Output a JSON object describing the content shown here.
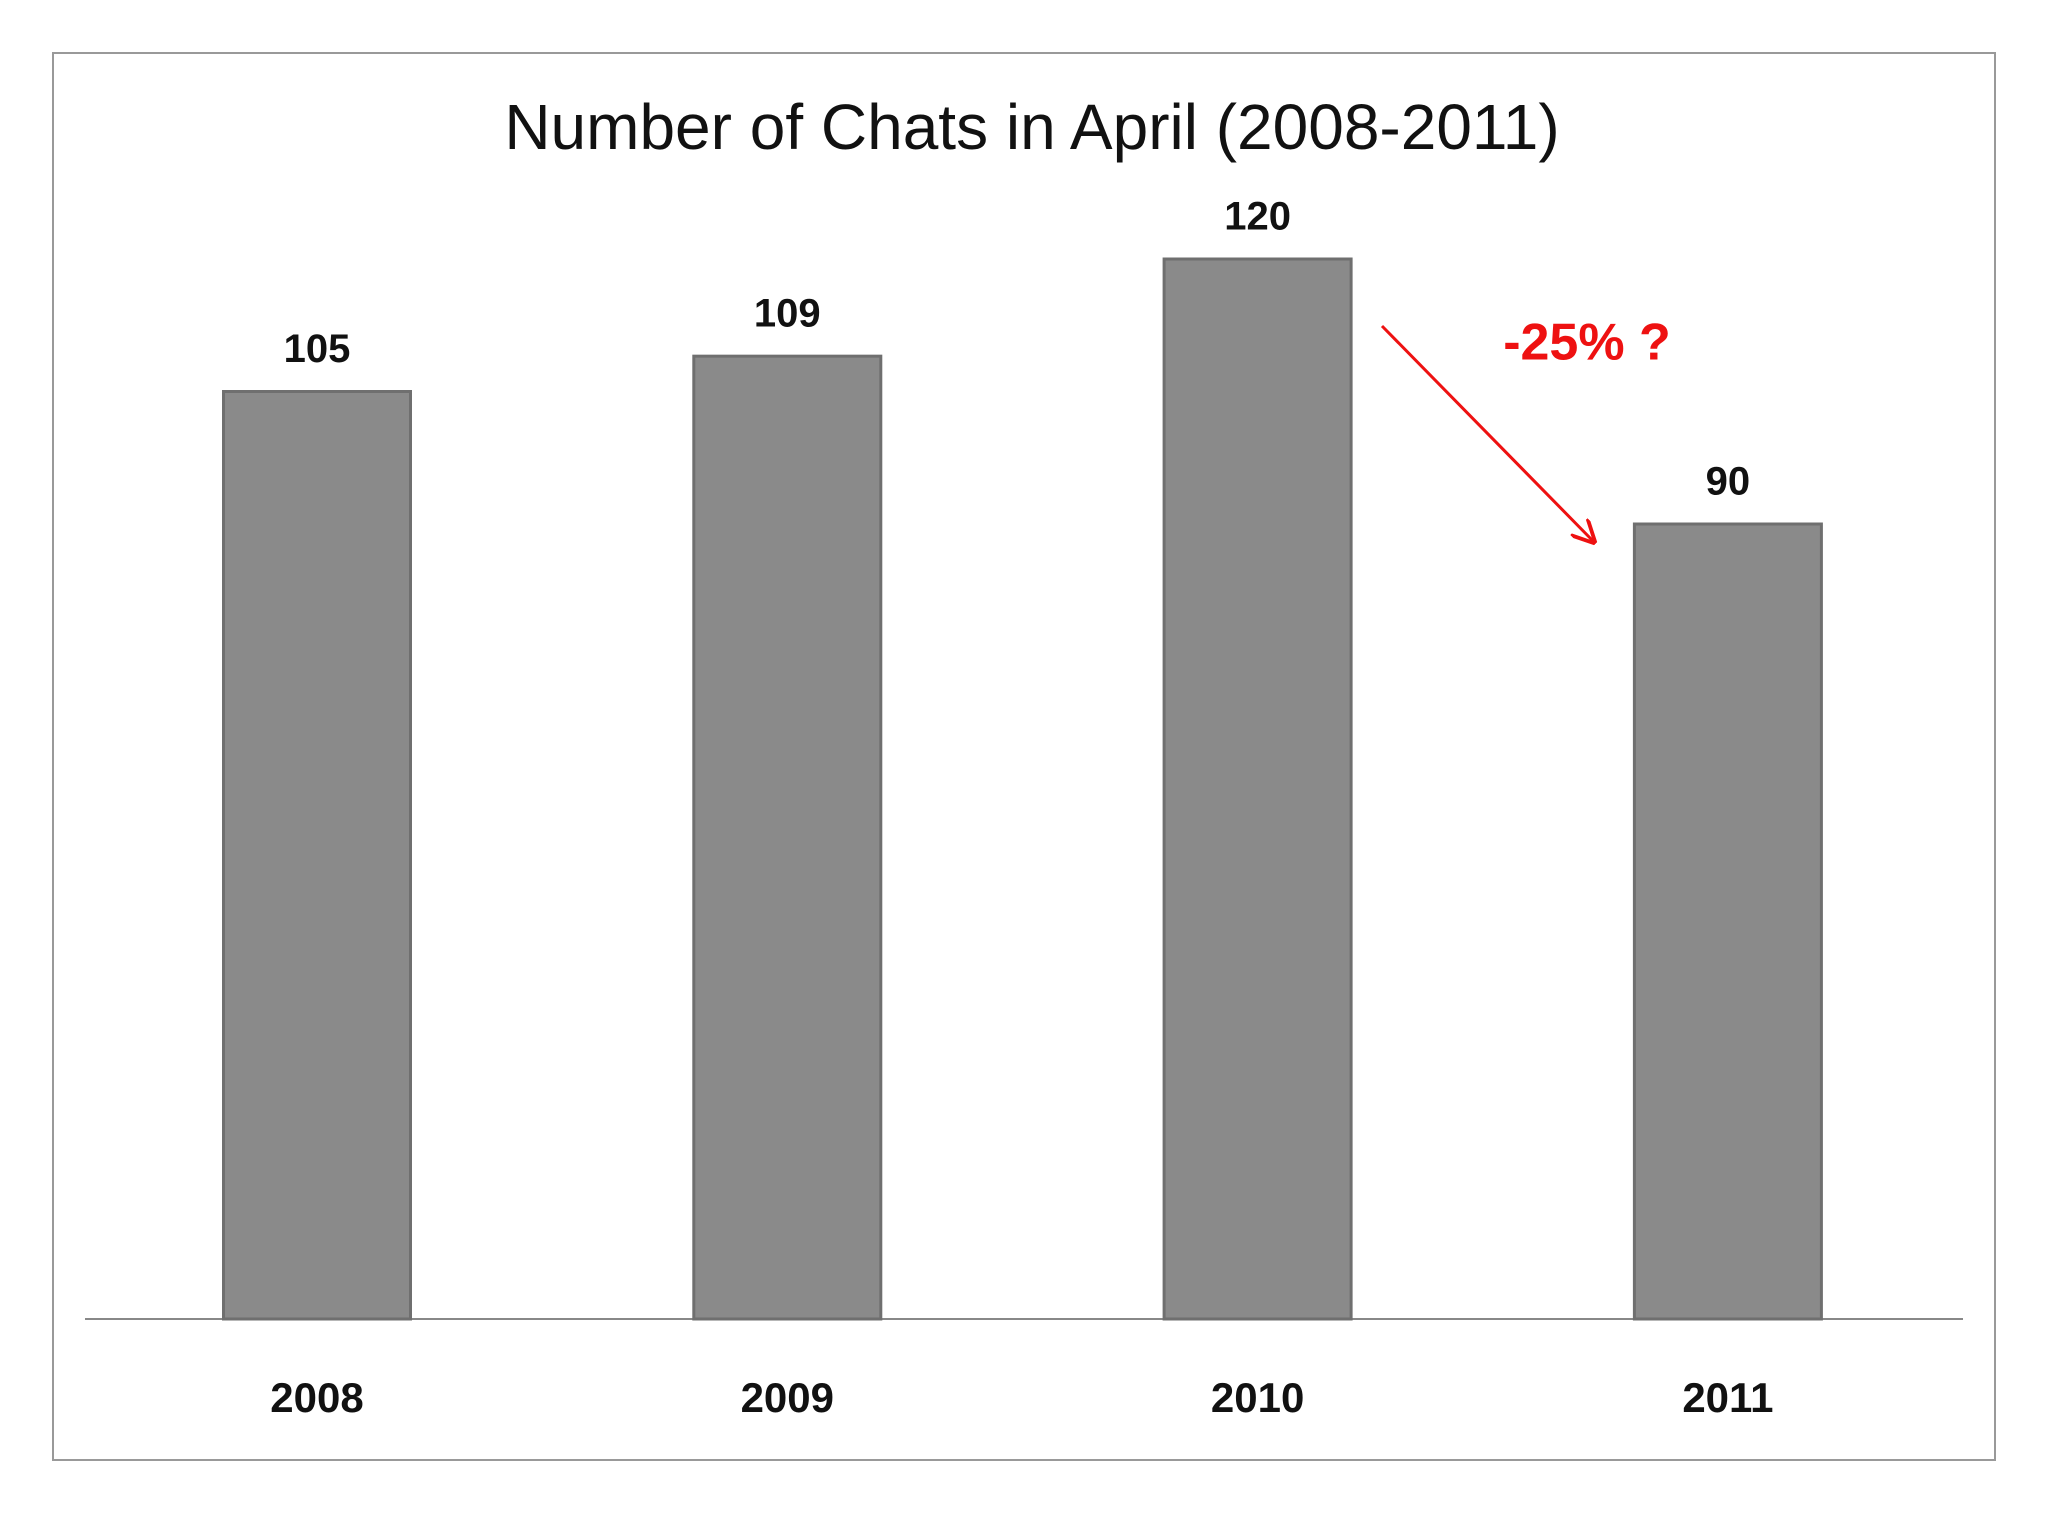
{
  "chart_data": {
    "type": "bar",
    "title": "Number of Chats in April (2008-2011)",
    "categories": [
      "2008",
      "2009",
      "2010",
      "2011"
    ],
    "values": [
      105,
      109,
      120,
      90
    ],
    "color": "#8a8a8a",
    "annotation": "-25% ?"
  }
}
